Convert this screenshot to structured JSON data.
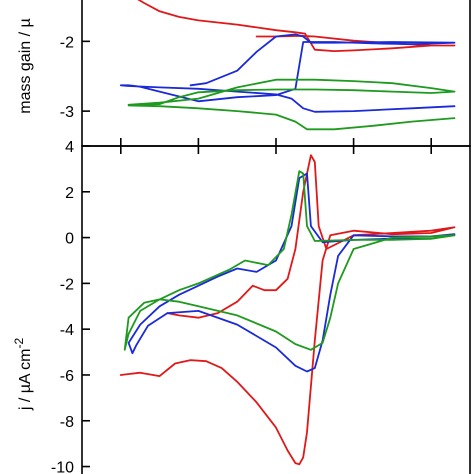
{
  "chart_data": [
    {
      "type": "line",
      "ylabel": "mass gain / µ",
      "yticks": [
        -3,
        -2
      ],
      "ylim": [
        -3.5,
        -1.35
      ],
      "xlim": [
        0,
        1
      ],
      "xtick_count": 5,
      "series": [
        {
          "color": "#e01818",
          "points": [
            [
              0.13,
              -1.35
            ],
            [
              0.16,
              -1.45
            ],
            [
              0.2,
              -1.57
            ],
            [
              0.25,
              -1.65
            ],
            [
              0.3,
              -1.7
            ],
            [
              0.4,
              -1.76
            ],
            [
              0.5,
              -1.84
            ],
            [
              0.55,
              -1.87
            ],
            [
              0.575,
              -1.89
            ],
            [
              0.6,
              -2.12
            ],
            [
              0.65,
              -2.14
            ],
            [
              0.7,
              -2.13
            ],
            [
              0.8,
              -2.1
            ],
            [
              0.9,
              -2.06
            ],
            [
              0.96,
              -2.06
            ],
            [
              0.9,
              -2.06
            ],
            [
              0.8,
              -2.03
            ],
            [
              0.7,
              -1.99
            ],
            [
              0.6,
              -1.93
            ],
            [
              0.56,
              -1.92
            ],
            [
              0.5,
              -1.93
            ],
            [
              0.45,
              -1.93
            ]
          ]
        },
        {
          "color": "#1a2ad8",
          "points": [
            [
              0.28,
              -2.63
            ],
            [
              0.32,
              -2.6
            ],
            [
              0.4,
              -2.42
            ],
            [
              0.45,
              -2.15
            ],
            [
              0.5,
              -1.93
            ],
            [
              0.55,
              -1.9
            ],
            [
              0.57,
              -1.93
            ],
            [
              0.59,
              -2.02
            ],
            [
              0.65,
              -2.02
            ],
            [
              0.8,
              -2.01
            ],
            [
              0.96,
              -2.02
            ],
            [
              0.85,
              -2.04
            ],
            [
              0.75,
              -2.03
            ],
            [
              0.65,
              -2.01
            ],
            [
              0.59,
              -2.01
            ],
            [
              0.57,
              -2.01
            ],
            [
              0.55,
              -2.68
            ],
            [
              0.5,
              -2.77
            ],
            [
              0.4,
              -2.8
            ],
            [
              0.3,
              -2.86
            ],
            [
              0.2,
              -2.72
            ],
            [
              0.15,
              -2.65
            ],
            [
              0.12,
              -2.63
            ],
            [
              0.1,
              -2.63
            ],
            [
              0.12,
              -2.64
            ],
            [
              0.2,
              -2.66
            ],
            [
              0.3,
              -2.68
            ],
            [
              0.4,
              -2.72
            ],
            [
              0.5,
              -2.76
            ],
            [
              0.54,
              -2.82
            ],
            [
              0.57,
              -2.96
            ],
            [
              0.6,
              -3.01
            ],
            [
              0.7,
              -3.0
            ],
            [
              0.85,
              -2.96
            ],
            [
              0.96,
              -2.93
            ]
          ]
        },
        {
          "color": "#1e9a1e",
          "points": [
            [
              0.12,
              -2.91
            ],
            [
              0.2,
              -2.88
            ],
            [
              0.3,
              -2.82
            ],
            [
              0.4,
              -2.66
            ],
            [
              0.5,
              -2.55
            ],
            [
              0.6,
              -2.55
            ],
            [
              0.7,
              -2.57
            ],
            [
              0.8,
              -2.6
            ],
            [
              0.9,
              -2.67
            ],
            [
              0.96,
              -2.72
            ],
            [
              0.9,
              -2.74
            ],
            [
              0.8,
              -2.72
            ],
            [
              0.7,
              -2.7
            ],
            [
              0.6,
              -2.69
            ],
            [
              0.5,
              -2.69
            ],
            [
              0.4,
              -2.7
            ],
            [
              0.3,
              -2.73
            ],
            [
              0.25,
              -2.8
            ],
            [
              0.2,
              -2.9
            ],
            [
              0.15,
              -2.91
            ],
            [
              0.12,
              -2.92
            ],
            [
              0.2,
              -2.93
            ],
            [
              0.3,
              -2.96
            ],
            [
              0.4,
              -3.0
            ],
            [
              0.5,
              -3.05
            ],
            [
              0.55,
              -3.15
            ],
            [
              0.58,
              -3.26
            ],
            [
              0.65,
              -3.26
            ],
            [
              0.75,
              -3.21
            ],
            [
              0.85,
              -3.15
            ],
            [
              0.96,
              -3.1
            ]
          ]
        }
      ]
    },
    {
      "type": "line",
      "ylabel": "j / µA cm",
      "ylabel_superscript": "-2",
      "yticks": [
        -10,
        -8,
        -6,
        -4,
        -2,
        0,
        2,
        4
      ],
      "ylim": [
        -10.5,
        4
      ],
      "xlim": [
        0,
        1
      ],
      "xtick_count": 5,
      "series": [
        {
          "color": "#e01818",
          "points": [
            [
              0.1,
              -6.0
            ],
            [
              0.15,
              -5.9
            ],
            [
              0.2,
              -6.05
            ],
            [
              0.24,
              -5.5
            ],
            [
              0.28,
              -5.35
            ],
            [
              0.32,
              -5.4
            ],
            [
              0.36,
              -5.7
            ],
            [
              0.4,
              -6.3
            ],
            [
              0.45,
              -7.2
            ],
            [
              0.5,
              -8.3
            ],
            [
              0.53,
              -9.3
            ],
            [
              0.55,
              -9.85
            ],
            [
              0.56,
              -9.9
            ],
            [
              0.57,
              -9.6
            ],
            [
              0.58,
              -8.5
            ],
            [
              0.6,
              -4.5
            ],
            [
              0.62,
              -1.0
            ],
            [
              0.64,
              0.1
            ],
            [
              0.7,
              0.3
            ],
            [
              0.8,
              0.15
            ],
            [
              0.9,
              0.2
            ],
            [
              0.96,
              0.45
            ],
            [
              0.9,
              0.3
            ],
            [
              0.8,
              0.2
            ],
            [
              0.7,
              0.1
            ],
            [
              0.63,
              -0.5
            ],
            [
              0.61,
              0.5
            ],
            [
              0.6,
              3.3
            ],
            [
              0.59,
              3.6
            ],
            [
              0.57,
              2.0
            ],
            [
              0.55,
              -0.5
            ],
            [
              0.53,
              -1.8
            ],
            [
              0.5,
              -2.3
            ],
            [
              0.47,
              -2.3
            ],
            [
              0.44,
              -2.1
            ],
            [
              0.4,
              -2.8
            ],
            [
              0.35,
              -3.3
            ],
            [
              0.3,
              -3.5
            ],
            [
              0.25,
              -3.4
            ],
            [
              0.22,
              -3.3
            ]
          ]
        },
        {
          "color": "#1a2ad8",
          "points": [
            [
              0.14,
              -4.7
            ],
            [
              0.17,
              -3.85
            ],
            [
              0.22,
              -3.3
            ],
            [
              0.3,
              -3.2
            ],
            [
              0.4,
              -3.8
            ],
            [
              0.5,
              -4.8
            ],
            [
              0.55,
              -5.6
            ],
            [
              0.58,
              -5.85
            ],
            [
              0.6,
              -5.7
            ],
            [
              0.62,
              -4.5
            ],
            [
              0.64,
              -2.5
            ],
            [
              0.66,
              -0.8
            ],
            [
              0.7,
              0.1
            ],
            [
              0.8,
              0.05
            ],
            [
              0.9,
              0.05
            ],
            [
              0.96,
              0.15
            ],
            [
              0.9,
              -0.05
            ],
            [
              0.8,
              -0.05
            ],
            [
              0.7,
              -0.1
            ],
            [
              0.62,
              -0.2
            ],
            [
              0.59,
              0.5
            ],
            [
              0.58,
              2.8
            ],
            [
              0.56,
              2.6
            ],
            [
              0.54,
              0.5
            ],
            [
              0.5,
              -1.0
            ],
            [
              0.45,
              -1.5
            ],
            [
              0.4,
              -1.35
            ],
            [
              0.35,
              -1.7
            ],
            [
              0.3,
              -2.1
            ],
            [
              0.25,
              -2.5
            ],
            [
              0.2,
              -3.0
            ],
            [
              0.15,
              -3.8
            ],
            [
              0.12,
              -4.6
            ],
            [
              0.13,
              -5.05
            ],
            [
              0.14,
              -4.7
            ]
          ]
        },
        {
          "color": "#1e9a1e",
          "points": [
            [
              0.12,
              -3.5
            ],
            [
              0.16,
              -2.85
            ],
            [
              0.2,
              -2.7
            ],
            [
              0.25,
              -2.8
            ],
            [
              0.3,
              -3.0
            ],
            [
              0.4,
              -3.4
            ],
            [
              0.5,
              -4.1
            ],
            [
              0.55,
              -4.65
            ],
            [
              0.59,
              -4.9
            ],
            [
              0.62,
              -4.6
            ],
            [
              0.64,
              -3.5
            ],
            [
              0.66,
              -2.0
            ],
            [
              0.7,
              -0.5
            ],
            [
              0.8,
              0.0
            ],
            [
              0.9,
              0.05
            ],
            [
              0.96,
              0.1
            ],
            [
              0.9,
              -0.05
            ],
            [
              0.8,
              -0.1
            ],
            [
              0.7,
              -0.1
            ],
            [
              0.6,
              -0.15
            ],
            [
              0.58,
              0.5
            ],
            [
              0.57,
              2.8
            ],
            [
              0.56,
              2.9
            ],
            [
              0.54,
              1.0
            ],
            [
              0.52,
              -0.5
            ],
            [
              0.48,
              -1.2
            ],
            [
              0.42,
              -1.0
            ],
            [
              0.38,
              -1.4
            ],
            [
              0.3,
              -2.0
            ],
            [
              0.25,
              -2.3
            ],
            [
              0.2,
              -2.7
            ],
            [
              0.15,
              -3.2
            ],
            [
              0.12,
              -4.2
            ],
            [
              0.11,
              -4.9
            ],
            [
              0.12,
              -3.5
            ]
          ]
        }
      ]
    }
  ]
}
